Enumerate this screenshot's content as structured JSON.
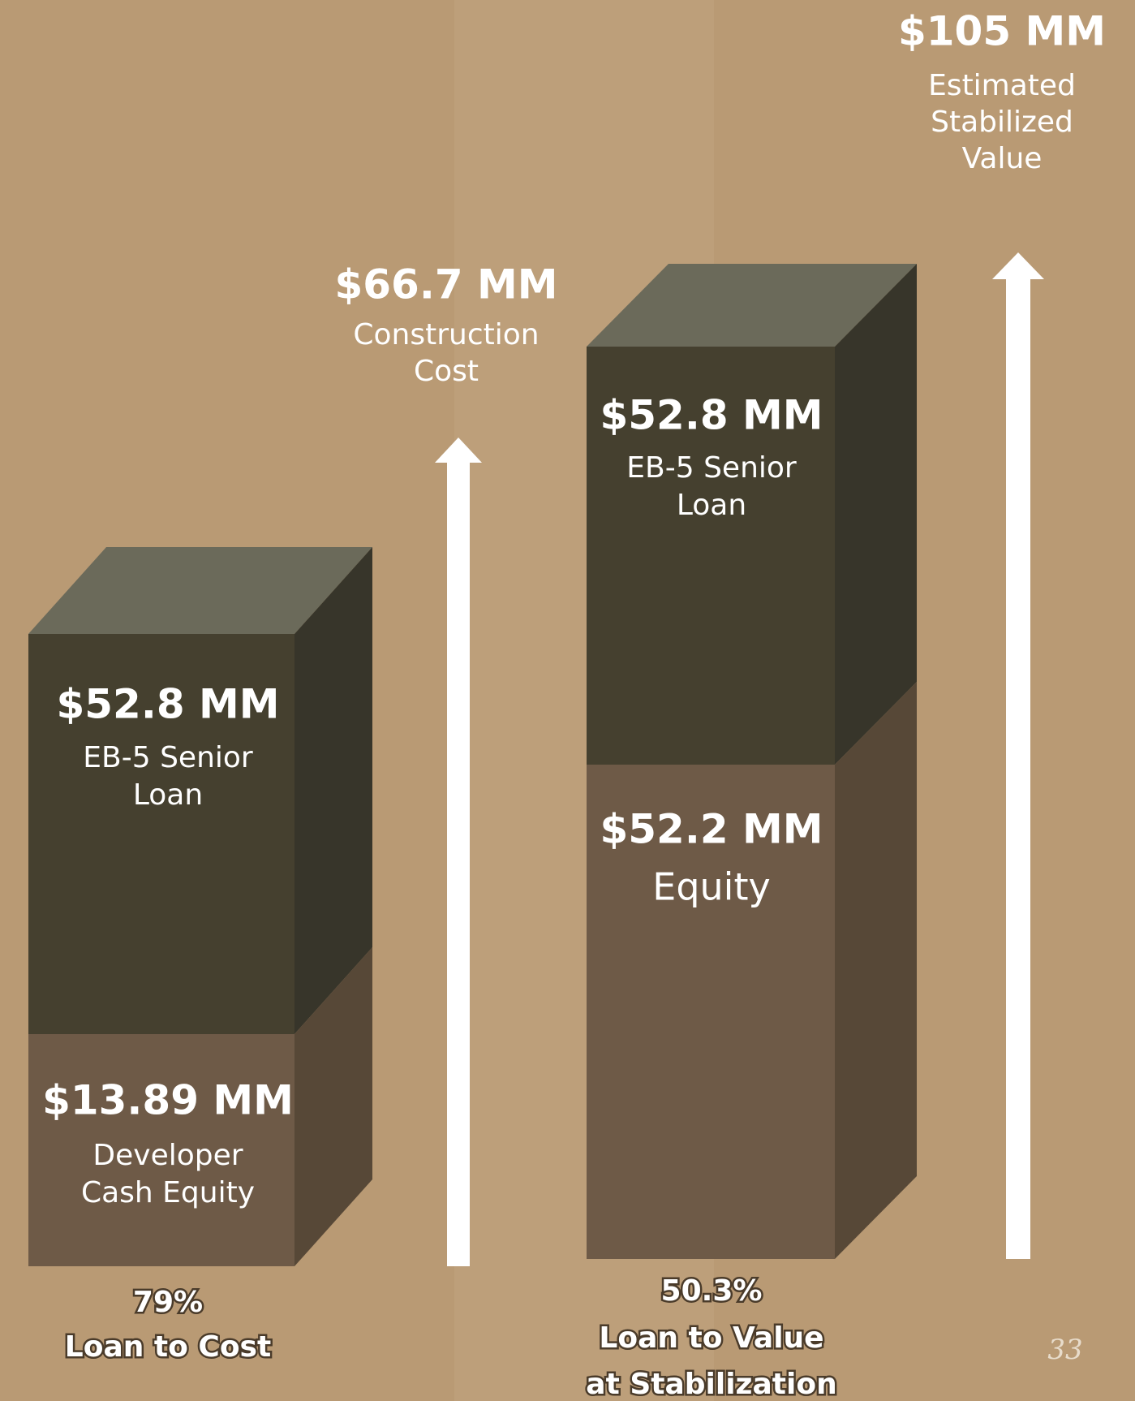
{
  "stacks": [
    {
      "segments": [
        {
          "amount": "$52.8 MM",
          "label": [
            "EB-5 Senior",
            "Loan"
          ]
        },
        {
          "amount": "$13.89 MM",
          "label": [
            "Developer",
            "Cash Equity"
          ]
        }
      ],
      "ratio": "79%",
      "ratio_label": [
        "Loan to Cost"
      ]
    },
    {
      "segments": [
        {
          "amount": "$52.8 MM",
          "label": [
            "EB-5 Senior",
            "Loan"
          ]
        },
        {
          "amount": "$52.2 MM",
          "label": [
            "Equity"
          ]
        }
      ],
      "ratio": "50.3%",
      "ratio_label": [
        "Loan to Value",
        "at Stabilization"
      ]
    }
  ],
  "arrows": [
    {
      "amount": "$66.7 MM",
      "label": [
        "Construction",
        "Cost"
      ]
    },
    {
      "amount": "$105 MM",
      "label": [
        "Estimated",
        "Stabilized",
        "Value"
      ]
    }
  ],
  "page_number": "33"
}
